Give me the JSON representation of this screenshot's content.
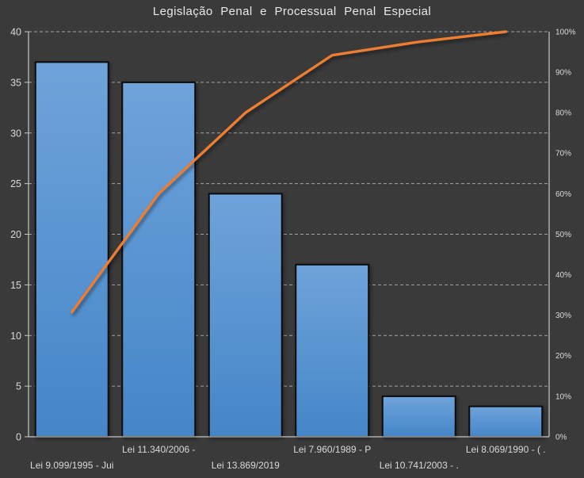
{
  "chart": {
    "colors": {
      "background": "#3A3A3A",
      "bar_fill_top": "#6FA3DA",
      "bar_fill_bottom": "#4486C8",
      "bar_border": "#0B0B0B",
      "line": "#ED7D31",
      "axis_line": "#C8C8C8",
      "gridline": "#C8C8C8",
      "tick_text": "#D9D9D9",
      "title_text": "#E8E8E8"
    }
  },
  "chart_data": {
    "type": "bar",
    "subtype": "pareto (column series + cumulative percentage line)",
    "title": "Legislação Penal e Processual Penal Especial",
    "categories": [
      "Lei 9.099/1995 - Jui",
      "Lei 11.340/2006 -",
      "Lei 13.869/2019",
      "Lei 7.960/1989 - P",
      "Lei 10.741/2003 - .",
      "Lei 8.069/1990 - ( ."
    ],
    "bar_values": [
      37,
      35,
      24,
      17,
      4,
      3
    ],
    "cumulative_line_percent": [
      30.8,
      60,
      80,
      94.2,
      97.5,
      100
    ],
    "left_axis": {
      "min": 0,
      "max": 40,
      "ticks": [
        0,
        5,
        10,
        15,
        20,
        25,
        30,
        35,
        40
      ],
      "tick_labels": [
        "0",
        "5",
        "10",
        "15",
        "20",
        "25",
        "30",
        "35",
        "40"
      ]
    },
    "right_axis": {
      "min": 0,
      "max": 100,
      "ticks": [
        0,
        10,
        20,
        30,
        40,
        50,
        60,
        70,
        80,
        90,
        100
      ],
      "tick_labels": [
        "0%",
        "10%",
        "20%",
        "30%",
        "40%",
        "50%",
        "60%",
        "70%",
        "80%",
        "90%",
        "100%"
      ]
    },
    "gridlines": {
      "orientation": "horizontal",
      "style": "dashed",
      "at_left_axis_ticks": true
    },
    "legend": "none",
    "category_label_layout": "staggered-two-rows"
  }
}
